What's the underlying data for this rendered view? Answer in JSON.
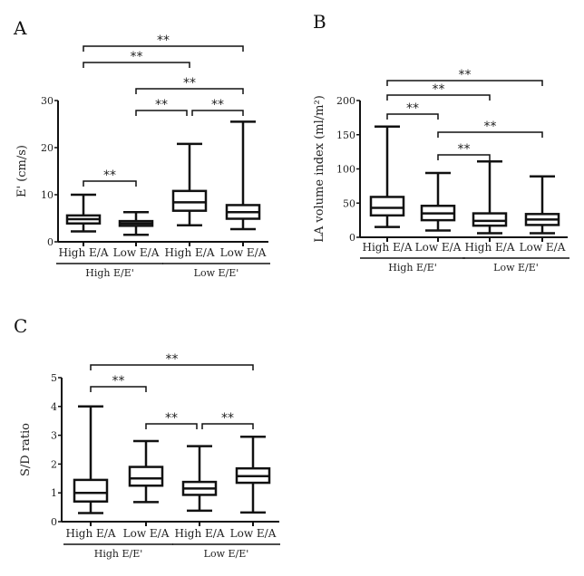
{
  "chart_data": [
    {
      "panel": "A",
      "type": "box",
      "ylabel": "E' (cm/s)",
      "ylim": [
        0,
        30
      ],
      "yticks": [
        0,
        10,
        20,
        30
      ],
      "categories": [
        "High E/A",
        "Low E/A",
        "High E/A",
        "Low E/A"
      ],
      "groups": [
        {
          "label": "High E/E'",
          "members": [
            0,
            1
          ]
        },
        {
          "label": "Low E/E'",
          "members": [
            2,
            3
          ]
        }
      ],
      "boxes": [
        {
          "min": 2.2,
          "q1": 3.9,
          "median": 4.8,
          "q3": 5.6,
          "max": 10.0
        },
        {
          "min": 1.5,
          "q1": 3.4,
          "median": 3.9,
          "q3": 4.4,
          "max": 6.3
        },
        {
          "min": 3.5,
          "q1": 6.6,
          "median": 8.4,
          "q3": 10.8,
          "max": 20.8
        },
        {
          "min": 2.7,
          "q1": 4.9,
          "median": 6.3,
          "q3": 7.8,
          "max": 25.5
        }
      ],
      "significance": [
        {
          "pair": [
            0,
            3
          ],
          "label": "**"
        },
        {
          "pair": [
            0,
            2
          ],
          "label": "**"
        },
        {
          "pair": [
            1,
            3
          ],
          "label": "**"
        },
        {
          "pair": [
            1,
            2
          ],
          "label": "**"
        },
        {
          "pair": [
            2,
            3
          ],
          "label": "**"
        },
        {
          "pair": [
            0,
            1
          ],
          "label": "**"
        }
      ]
    },
    {
      "panel": "B",
      "type": "box",
      "ylabel": "LA volume index (ml/m²)",
      "ylim": [
        0,
        200
      ],
      "yticks": [
        0,
        50,
        100,
        150,
        200
      ],
      "categories": [
        "High E/A",
        "Low E/A",
        "High E/A",
        "Low E/A"
      ],
      "groups": [
        {
          "label": "High E/E'",
          "members": [
            0,
            1
          ]
        },
        {
          "label": "Low E/E'",
          "members": [
            2,
            3
          ]
        }
      ],
      "boxes": [
        {
          "min": 15,
          "q1": 32,
          "median": 43,
          "q3": 59,
          "max": 162
        },
        {
          "min": 10,
          "q1": 25,
          "median": 35,
          "q3": 46,
          "max": 94
        },
        {
          "min": 6,
          "q1": 17,
          "median": 24,
          "q3": 35,
          "max": 111
        },
        {
          "min": 6,
          "q1": 18,
          "median": 26,
          "q3": 34,
          "max": 89
        }
      ],
      "significance": [
        {
          "pair": [
            0,
            3
          ],
          "label": "**"
        },
        {
          "pair": [
            0,
            2
          ],
          "label": "**"
        },
        {
          "pair": [
            0,
            1
          ],
          "label": "**"
        },
        {
          "pair": [
            1,
            3
          ],
          "label": "**"
        },
        {
          "pair": [
            1,
            2
          ],
          "label": "**"
        }
      ]
    },
    {
      "panel": "C",
      "type": "box",
      "ylabel": "S/D ratio",
      "ylim": [
        0,
        5
      ],
      "yticks": [
        0,
        1,
        2,
        3,
        4,
        5
      ],
      "categories": [
        "High E/A",
        "Low E/A",
        "High E/A",
        "Low E/A"
      ],
      "groups": [
        {
          "label": "High E/E'",
          "members": [
            0,
            1
          ]
        },
        {
          "label": "Low E/E'",
          "members": [
            2,
            3
          ]
        }
      ],
      "boxes": [
        {
          "min": 0.3,
          "q1": 0.7,
          "median": 1.0,
          "q3": 1.45,
          "max": 4.0
        },
        {
          "min": 0.68,
          "q1": 1.25,
          "median": 1.5,
          "q3": 1.9,
          "max": 2.8
        },
        {
          "min": 0.38,
          "q1": 0.93,
          "median": 1.15,
          "q3": 1.38,
          "max": 2.62
        },
        {
          "min": 0.32,
          "q1": 1.35,
          "median": 1.58,
          "q3": 1.85,
          "max": 2.95
        }
      ],
      "significance": [
        {
          "pair": [
            0,
            3
          ],
          "label": "**"
        },
        {
          "pair": [
            0,
            1
          ],
          "label": "**"
        },
        {
          "pair": [
            1,
            2
          ],
          "label": "**"
        },
        {
          "pair": [
            2,
            3
          ],
          "label": "**"
        }
      ]
    }
  ]
}
